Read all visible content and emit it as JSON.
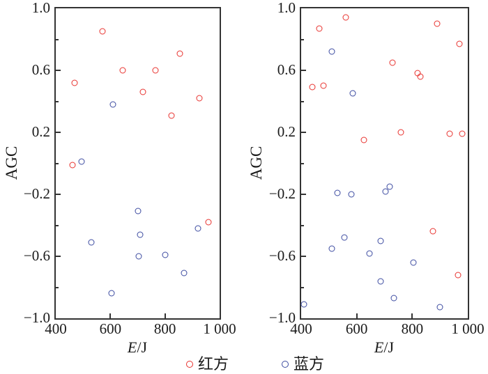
{
  "figure": {
    "legend": {
      "items": [
        {
          "label": "红方",
          "color": "#e8312d",
          "marker": "red-circle"
        },
        {
          "label": "蓝方",
          "color": "#3b4aa0",
          "marker": "blue-circle"
        }
      ]
    }
  },
  "chart_data": [
    {
      "type": "scatter",
      "panel": "left",
      "xlabel": "E/J",
      "xlabel_italic": "E",
      "xlabel_unit": "/J",
      "ylabel": "AGC",
      "xlim": [
        400,
        1000
      ],
      "ylim": [
        -1.0,
        1.0
      ],
      "grid": false,
      "x_major_ticks": [
        400,
        600,
        800,
        1000
      ],
      "x_tick_labels": [
        "400",
        "600",
        "800",
        "1 000"
      ],
      "y_major_ticks": [
        1.0,
        0.6,
        0.2,
        -0.2,
        -0.6,
        -1.0
      ],
      "y_tick_labels": [
        "1.0",
        "0.6",
        "0.2",
        "−0.2",
        "−0.6",
        "−1.0"
      ],
      "y_minor_ticks": [
        0.8,
        0.4,
        0.0,
        -0.4,
        -0.8
      ],
      "series": [
        {
          "name": "红方",
          "color": "#e8312d",
          "marker_name": "red-side-point",
          "points": [
            [
              460,
              -0.01
            ],
            [
              470,
              0.52
            ],
            [
              570,
              0.85
            ],
            [
              645,
              0.6
            ],
            [
              720,
              0.46
            ],
            [
              765,
              0.6
            ],
            [
              825,
              0.31
            ],
            [
              855,
              0.71
            ],
            [
              925,
              0.42
            ],
            [
              960,
              -0.38
            ]
          ]
        },
        {
          "name": "蓝方",
          "color": "#3b4aa0",
          "marker_name": "blue-side-point",
          "points": [
            [
              495,
              0.01
            ],
            [
              530,
              -0.51
            ],
            [
              605,
              -0.84
            ],
            [
              610,
              0.38
            ],
            [
              700,
              -0.31
            ],
            [
              705,
              -0.6
            ],
            [
              710,
              -0.46
            ],
            [
              800,
              -0.59
            ],
            [
              870,
              -0.71
            ],
            [
              920,
              -0.42
            ]
          ]
        }
      ],
      "legend_position": "bottom"
    },
    {
      "type": "scatter",
      "panel": "right",
      "xlabel": "E/J",
      "xlabel_italic": "E",
      "xlabel_unit": "/J",
      "ylabel": "AGC",
      "xlim": [
        400,
        1000
      ],
      "ylim": [
        -1.0,
        1.0
      ],
      "grid": false,
      "x_major_ticks": [
        400,
        600,
        800,
        1000
      ],
      "x_tick_labels": [
        "400",
        "600",
        "800",
        "1 000"
      ],
      "y_major_ticks": [
        1.0,
        0.6,
        0.2,
        -0.2,
        -0.6,
        -1.0
      ],
      "y_tick_labels": [
        "1.0",
        "0.6",
        "0.2",
        "−0.2",
        "−0.6",
        "−1.0"
      ],
      "y_minor_ticks": [
        0.8,
        0.4,
        0.0,
        -0.4,
        -0.8
      ],
      "series": [
        {
          "name": "红方",
          "color": "#e8312d",
          "marker_name": "red-side-point",
          "points": [
            [
              440,
              0.49
            ],
            [
              465,
              0.87
            ],
            [
              480,
              0.5
            ],
            [
              560,
              0.94
            ],
            [
              625,
              0.15
            ],
            [
              730,
              0.65
            ],
            [
              760,
              0.2
            ],
            [
              820,
              0.58
            ],
            [
              830,
              0.56
            ],
            [
              875,
              -0.44
            ],
            [
              890,
              0.9
            ],
            [
              935,
              0.19
            ],
            [
              965,
              -0.72
            ],
            [
              970,
              0.77
            ],
            [
              980,
              0.19
            ]
          ]
        },
        {
          "name": "蓝方",
          "color": "#3b4aa0",
          "marker_name": "blue-side-point",
          "points": [
            [
              410,
              -0.91
            ],
            [
              510,
              0.72
            ],
            [
              510,
              -0.55
            ],
            [
              530,
              -0.19
            ],
            [
              555,
              -0.48
            ],
            [
              580,
              -0.2
            ],
            [
              585,
              0.45
            ],
            [
              645,
              -0.58
            ],
            [
              685,
              -0.5
            ],
            [
              685,
              -0.76
            ],
            [
              705,
              -0.18
            ],
            [
              720,
              -0.15
            ],
            [
              735,
              -0.87
            ],
            [
              805,
              -0.64
            ],
            [
              900,
              -0.93
            ]
          ]
        }
      ],
      "legend_position": "bottom"
    }
  ]
}
